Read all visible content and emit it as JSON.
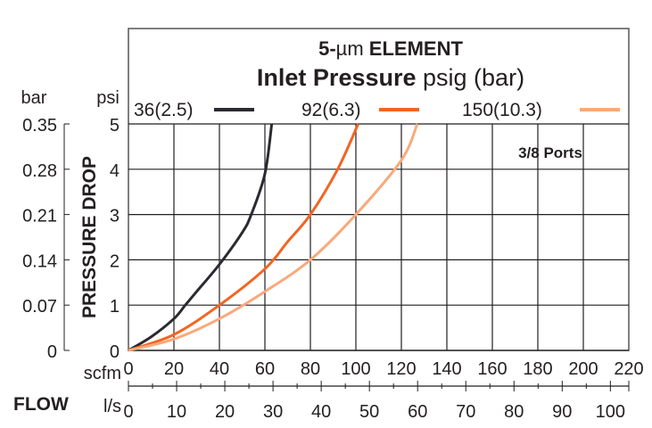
{
  "chart_data": {
    "type": "line",
    "title": "5-µm ELEMENT",
    "title_parts": {
      "prefix": "5-",
      "mu": "µm",
      "bold": "ELEMENT"
    },
    "legend_title": {
      "bold": "Inlet Pressure",
      "normal": "psig (bar)"
    },
    "annotation": "3/8 Ports",
    "ylabel": "PRESSURE DROP",
    "xlabel": "FLOW",
    "y_units": {
      "primary": "psi",
      "secondary": "bar"
    },
    "x_units": {
      "primary": "scfm",
      "secondary": "l/s"
    },
    "xlim": [
      0,
      220
    ],
    "ylim": [
      0,
      5
    ],
    "grid": true,
    "legend_placement": "top",
    "x_ticks": [
      "0",
      "20",
      "40",
      "60",
      "80",
      "100",
      "120",
      "140",
      "160",
      "180",
      "200",
      "220"
    ],
    "y_ticks": [
      "0",
      "1",
      "2",
      "3",
      "4",
      "5"
    ],
    "bar_ticks": [
      "0",
      "0.07",
      "0.14",
      "0.21",
      "0.28",
      "0.35"
    ],
    "ls_ticks": [
      "0",
      "10",
      "20",
      "30",
      "40",
      "50",
      "60",
      "70",
      "80",
      "90",
      "100"
    ],
    "series": [
      {
        "name": "36(2.5)",
        "color": "#2a2a30",
        "x": [
          0,
          10,
          20,
          25,
          30,
          40,
          50,
          54,
          60,
          63
        ],
        "y": [
          0,
          0.3,
          0.7,
          1,
          1.3,
          1.9,
          2.6,
          3,
          3.9,
          5
        ]
      },
      {
        "name": "92(6.3)",
        "color": "#f26522",
        "x": [
          0,
          20,
          40,
          60,
          70,
          80,
          92,
          101
        ],
        "y": [
          0,
          0.35,
          1,
          1.8,
          2.4,
          3,
          4,
          5
        ]
      },
      {
        "name": "150(10.3)",
        "color": "#f9a97a",
        "x": [
          0,
          20,
          40,
          60,
          80,
          100,
          120,
          127
        ],
        "y": [
          0,
          0.25,
          0.7,
          1.3,
          2,
          3,
          4.2,
          5
        ]
      }
    ]
  }
}
